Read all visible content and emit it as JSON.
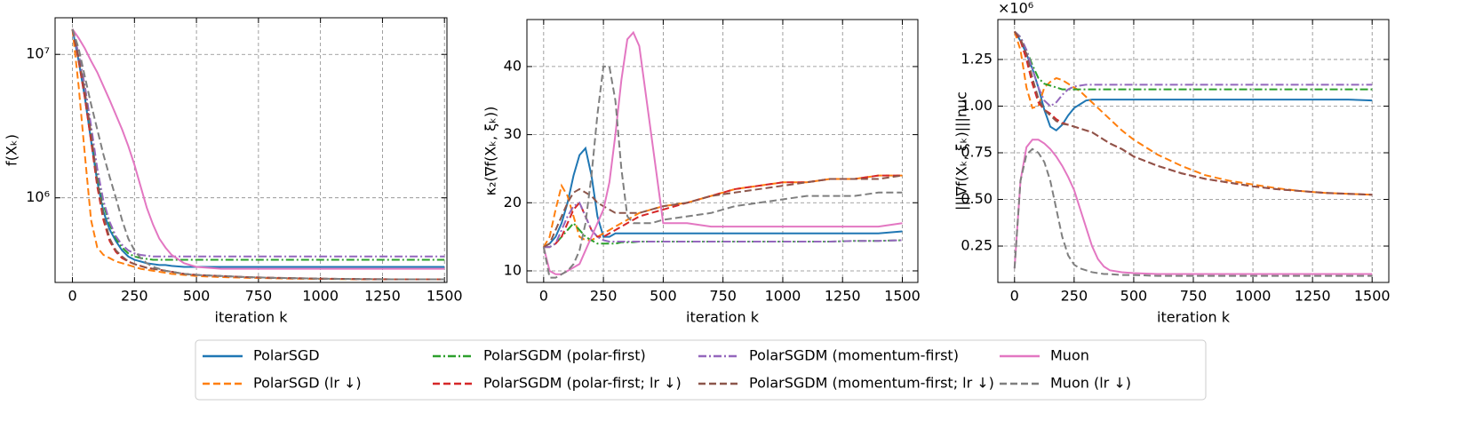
{
  "chart_data": [
    {
      "type": "line",
      "xlabel": "iteration k",
      "ylabel": "f(Xₖ)",
      "log_y": true,
      "grid": true,
      "xlim": [
        -70,
        1510
      ],
      "ylim": [
        257000,
        18000000
      ],
      "xticks": [
        0,
        250,
        500,
        750,
        1000,
        1250,
        1500
      ],
      "yticks": [
        {
          "value": 1000000,
          "label": "10⁶"
        },
        {
          "value": 10000000,
          "label": "10⁷"
        }
      ],
      "x": [
        0,
        25,
        50,
        75,
        100,
        125,
        150,
        175,
        200,
        225,
        250,
        275,
        300,
        325,
        350,
        375,
        400,
        450,
        500,
        600,
        700,
        800,
        900,
        1000,
        1100,
        1200,
        1300,
        1400,
        1500
      ],
      "series": [
        {
          "name": "PolarSGD",
          "color": "#1f77b4",
          "dash": "solid",
          "values": [
            15000000.0,
            9000000.0,
            5000000.0,
            2500000.0,
            1300000.0,
            800000.0,
            600000.0,
            500000.0,
            430000.0,
            390000.0,
            370000.0,
            360000.0,
            350000.0,
            345000.0,
            340000.0,
            340000.0,
            335000.0,
            330000.0,
            330000.0,
            330000.0,
            330000.0,
            330000.0,
            330000.0,
            330000.0,
            330000.0,
            330000.0,
            330000.0,
            330000.0,
            330000.0
          ]
        },
        {
          "name": "PolarSGD (lr ↓)",
          "color": "#ff7f0e",
          "dash": "dashed",
          "values": [
            15000000.0,
            6000000.0,
            2000000.0,
            700000.0,
            450000.0,
            400000.0,
            380000.0,
            360000.0,
            350000.0,
            340000.0,
            330000.0,
            320000.0,
            315000.0,
            310000.0,
            305000.0,
            300000.0,
            295000.0,
            290000.0,
            285000.0,
            280000.0,
            277000.0,
            275000.0,
            273000.0,
            272000.0,
            271000.0,
            270000.0,
            270000.0,
            270000.0,
            270000.0
          ]
        },
        {
          "name": "PolarSGDM (polar-first)",
          "color": "#2ca02c",
          "dash": "dashdot",
          "values": [
            15000000.0,
            10000000.0,
            6000000.0,
            3000000.0,
            1500000.0,
            900000.0,
            650000.0,
            520000.0,
            450000.0,
            410000.0,
            390000.0,
            380000.0,
            375000.0,
            370000.0,
            370000.0,
            370000.0,
            370000.0,
            370000.0,
            370000.0,
            370000.0,
            370000.0,
            370000.0,
            370000.0,
            370000.0,
            370000.0,
            370000.0,
            370000.0,
            370000.0,
            370000.0
          ]
        },
        {
          "name": "PolarSGDM (polar-first; lr ↓)",
          "color": "#d62728",
          "dash": "dashed",
          "values": [
            15000000.0,
            9000000.0,
            5000000.0,
            2500000.0,
            1200000.0,
            700000.0,
            500000.0,
            420000.0,
            380000.0,
            360000.0,
            345000.0,
            335000.0,
            325000.0,
            320000.0,
            315000.0,
            310000.0,
            305000.0,
            295000.0,
            290000.0,
            285000.0,
            280000.0,
            277000.0,
            275000.0,
            273000.0,
            272000.0,
            271000.0,
            270000.0,
            270000.0,
            270000.0
          ]
        },
        {
          "name": "PolarSGDM (momentum-first)",
          "color": "#9467bd",
          "dash": "dashdot",
          "values": [
            15000000.0,
            10000000.0,
            6000000.0,
            3200000.0,
            1600000.0,
            950000.0,
            680000.0,
            540000.0,
            470000.0,
            430000.0,
            410000.0,
            400000.0,
            395000.0,
            390000.0,
            390000.0,
            390000.0,
            390000.0,
            390000.0,
            390000.0,
            390000.0,
            390000.0,
            390000.0,
            390000.0,
            390000.0,
            390000.0,
            390000.0,
            390000.0,
            390000.0,
            390000.0
          ]
        },
        {
          "name": "PolarSGDM (momentum-first; lr ↓)",
          "color": "#8c564b",
          "dash": "dashed",
          "values": [
            15000000.0,
            9500000.0,
            5500000.0,
            2800000.0,
            1300000.0,
            750000.0,
            520000.0,
            430000.0,
            390000.0,
            360000.0,
            345000.0,
            335000.0,
            325000.0,
            320000.0,
            315000.0,
            310000.0,
            305000.0,
            295000.0,
            290000.0,
            285000.0,
            280000.0,
            277000.0,
            275000.0,
            273000.0,
            272000.0,
            271000.0,
            270000.0,
            270000.0,
            270000.0
          ]
        },
        {
          "name": "Muon",
          "color": "#e377c2",
          "dash": "solid",
          "values": [
            15000000.0,
            13000000.0,
            11000000.0,
            9000000.0,
            7500000.0,
            6000000.0,
            4800000.0,
            3800000.0,
            3000000.0,
            2300000.0,
            1700000.0,
            1200000.0,
            850000.0,
            650000.0,
            520000.0,
            450000.0,
            400000.0,
            350000.0,
            330000.0,
            320000.0,
            320000.0,
            320000.0,
            320000.0,
            320000.0,
            320000.0,
            320000.0,
            320000.0,
            320000.0,
            320000.0
          ]
        },
        {
          "name": "Muon (lr ↓)",
          "color": "#7f7f7f",
          "dash": "dashed",
          "values": [
            15000000.0,
            11000000.0,
            7000000.0,
            4500000.0,
            3000000.0,
            2000000.0,
            1400000.0,
            1000000.0,
            700000.0,
            520000.0,
            430000.0,
            380000.0,
            350000.0,
            330000.0,
            320000.0,
            310000.0,
            305000.0,
            295000.0,
            290000.0,
            285000.0,
            280000.0,
            277000.0,
            275000.0,
            273000.0,
            272000.0,
            271000.0,
            270000.0,
            270000.0,
            270000.0
          ]
        }
      ]
    },
    {
      "type": "line",
      "xlabel": "iteration k",
      "ylabel": "κ₂(∇f(Xₖ, ξₖ))",
      "grid": true,
      "xlim": [
        -70,
        1565
      ],
      "ylim": [
        8.3,
        46.9
      ],
      "xticks": [
        0,
        250,
        500,
        750,
        1000,
        1250,
        1500
      ],
      "yticks": [
        10,
        20,
        30,
        40
      ],
      "x": [
        0,
        25,
        50,
        75,
        100,
        125,
        150,
        175,
        200,
        225,
        250,
        275,
        300,
        325,
        350,
        375,
        400,
        450,
        500,
        600,
        700,
        800,
        900,
        1000,
        1100,
        1200,
        1300,
        1400,
        1500
      ],
      "series": [
        {
          "values": [
            13.5,
            14,
            15,
            17,
            20,
            24,
            27,
            28,
            24,
            18,
            15,
            15,
            15.5,
            15.5,
            15.5,
            15.5,
            15.5,
            15.5,
            15.5,
            15.5,
            15.5,
            15.5,
            15.5,
            15.5,
            15.5,
            15.5,
            15.5,
            15.5,
            15.8
          ]
        },
        {
          "values": [
            13.5,
            15,
            19,
            22.5,
            21,
            18,
            15,
            14.5,
            14.5,
            15,
            15.5,
            16,
            16.5,
            17,
            17.5,
            18,
            18.5,
            19,
            19.5,
            20,
            21,
            22,
            22.5,
            23,
            23,
            23.5,
            23.5,
            24,
            24
          ]
        },
        {
          "values": [
            13.5,
            13.5,
            14,
            15,
            16,
            17,
            16,
            15,
            14.5,
            14,
            14,
            14,
            14,
            14.2,
            14.2,
            14.2,
            14.3,
            14.3,
            14.3,
            14.3,
            14.3,
            14.3,
            14.3,
            14.3,
            14.3,
            14.3,
            14.4,
            14.4,
            14.5
          ]
        },
        {
          "values": [
            13.5,
            13.5,
            14,
            15,
            17,
            19,
            20,
            18,
            16,
            15,
            15,
            15.5,
            16,
            16.5,
            17,
            17.5,
            18,
            18.5,
            19,
            20,
            21,
            22,
            22.5,
            23,
            23,
            23.5,
            23.5,
            24,
            24
          ]
        },
        {
          "values": [
            13.5,
            13.5,
            14,
            16,
            18,
            19.5,
            20,
            18,
            16,
            15,
            14.5,
            14.3,
            14.3,
            14.3,
            14.3,
            14.3,
            14.3,
            14.3,
            14.3,
            14.3,
            14.3,
            14.3,
            14.3,
            14.3,
            14.3,
            14.3,
            14.4,
            14.4,
            14.5
          ]
        },
        {
          "values": [
            13.5,
            14,
            16,
            18,
            20,
            21.5,
            22,
            21.5,
            21,
            20,
            19.5,
            19,
            18.5,
            18.5,
            18.5,
            18.5,
            18.5,
            19,
            19.5,
            20,
            21,
            21.5,
            22,
            22.5,
            23,
            23.5,
            23.5,
            23.5,
            24
          ]
        },
        {
          "values": [
            13.5,
            10,
            9.5,
            9.5,
            10,
            10.5,
            11,
            13,
            15,
            17,
            19,
            23,
            30,
            38,
            44,
            45,
            43,
            30,
            17,
            17,
            16.5,
            16.5,
            16.5,
            16.5,
            16.5,
            16.5,
            16.5,
            16.5,
            17
          ]
        },
        {
          "values": [
            13.5,
            9,
            9,
            9.5,
            10,
            11,
            13,
            17,
            24,
            33,
            40,
            40,
            35,
            25,
            18,
            17,
            17,
            17,
            17.5,
            18,
            18.5,
            19.5,
            20,
            20.5,
            21,
            21,
            21,
            21.5,
            21.5
          ]
        }
      ]
    },
    {
      "type": "line",
      "xlabel": "iteration k",
      "ylabel": "|||∇f(Xₖ, ξₖ)|||nuc",
      "offset_label": "×10⁶",
      "grid": true,
      "xlim": [
        -70,
        1570
      ],
      "ylim": [
        0.055,
        1.464
      ],
      "xticks": [
        0,
        250,
        500,
        750,
        1000,
        1250,
        1500
      ],
      "yticks": [
        0.25,
        {
          "value": 0.5,
          "label": "0.50"
        },
        0.75,
        {
          "value": 1,
          "label": "1.00"
        },
        1.25
      ],
      "x": [
        0,
        25,
        50,
        75,
        100,
        125,
        150,
        175,
        200,
        225,
        250,
        275,
        300,
        325,
        350,
        375,
        400,
        450,
        500,
        600,
        700,
        800,
        900,
        1000,
        1100,
        1200,
        1300,
        1400,
        1500
      ],
      "series": [
        {
          "values": [
            1.4,
            1.35,
            1.28,
            1.2,
            1.1,
            0.98,
            0.89,
            0.87,
            0.9,
            0.95,
            0.99,
            1.01,
            1.03,
            1.035,
            1.035,
            1.035,
            1.035,
            1.035,
            1.035,
            1.035,
            1.035,
            1.035,
            1.035,
            1.035,
            1.035,
            1.035,
            1.035,
            1.035,
            1.03
          ]
        },
        {
          "values": [
            1.4,
            1.3,
            1.1,
            0.99,
            1,
            1.1,
            1.13,
            1.15,
            1.14,
            1.12,
            1.1,
            1.08,
            1.05,
            1.02,
            0.99,
            0.96,
            0.93,
            0.87,
            0.82,
            0.74,
            0.68,
            0.63,
            0.6,
            0.58,
            0.56,
            0.545,
            0.535,
            0.53,
            0.525
          ]
        },
        {
          "values": [
            1.4,
            1.37,
            1.3,
            1.22,
            1.15,
            1.12,
            1.11,
            1.1,
            1.09,
            1.09,
            1.09,
            1.09,
            1.09,
            1.09,
            1.09,
            1.09,
            1.09,
            1.09,
            1.09,
            1.09,
            1.09,
            1.09,
            1.09,
            1.09,
            1.09,
            1.09,
            1.09,
            1.09,
            1.09
          ]
        },
        {
          "values": [
            1.4,
            1.35,
            1.25,
            1.12,
            1.02,
            0.98,
            0.96,
            0.93,
            0.91,
            0.9,
            0.89,
            0.88,
            0.87,
            0.86,
            0.84,
            0.82,
            0.8,
            0.77,
            0.73,
            0.68,
            0.64,
            0.61,
            0.59,
            0.57,
            0.555,
            0.545,
            0.535,
            0.53,
            0.525
          ]
        },
        {
          "values": [
            1.4,
            1.37,
            1.3,
            1.2,
            1.1,
            1.03,
            1,
            1.02,
            1.06,
            1.09,
            1.105,
            1.11,
            1.115,
            1.115,
            1.115,
            1.115,
            1.115,
            1.115,
            1.115,
            1.115,
            1.115,
            1.115,
            1.115,
            1.115,
            1.115,
            1.115,
            1.115,
            1.115,
            1.115
          ]
        },
        {
          "values": [
            1.4,
            1.36,
            1.28,
            1.15,
            1.04,
            0.98,
            0.95,
            0.92,
            0.905,
            0.9,
            0.89,
            0.88,
            0.87,
            0.86,
            0.84,
            0.82,
            0.8,
            0.77,
            0.73,
            0.68,
            0.64,
            0.61,
            0.59,
            0.57,
            0.555,
            0.545,
            0.535,
            0.53,
            0.525
          ]
        },
        {
          "values": [
            0.13,
            0.6,
            0.78,
            0.82,
            0.82,
            0.8,
            0.77,
            0.73,
            0.68,
            0.62,
            0.55,
            0.45,
            0.35,
            0.25,
            0.18,
            0.14,
            0.12,
            0.11,
            0.105,
            0.1,
            0.1,
            0.1,
            0.1,
            0.1,
            0.1,
            0.1,
            0.1,
            0.1,
            0.1
          ]
        },
        {
          "values": [
            0.13,
            0.6,
            0.74,
            0.77,
            0.75,
            0.7,
            0.6,
            0.45,
            0.3,
            0.2,
            0.15,
            0.13,
            0.12,
            0.11,
            0.105,
            0.1,
            0.1,
            0.095,
            0.095,
            0.09,
            0.09,
            0.09,
            0.09,
            0.09,
            0.09,
            0.09,
            0.09,
            0.09,
            0.09
          ]
        }
      ]
    }
  ]
}
